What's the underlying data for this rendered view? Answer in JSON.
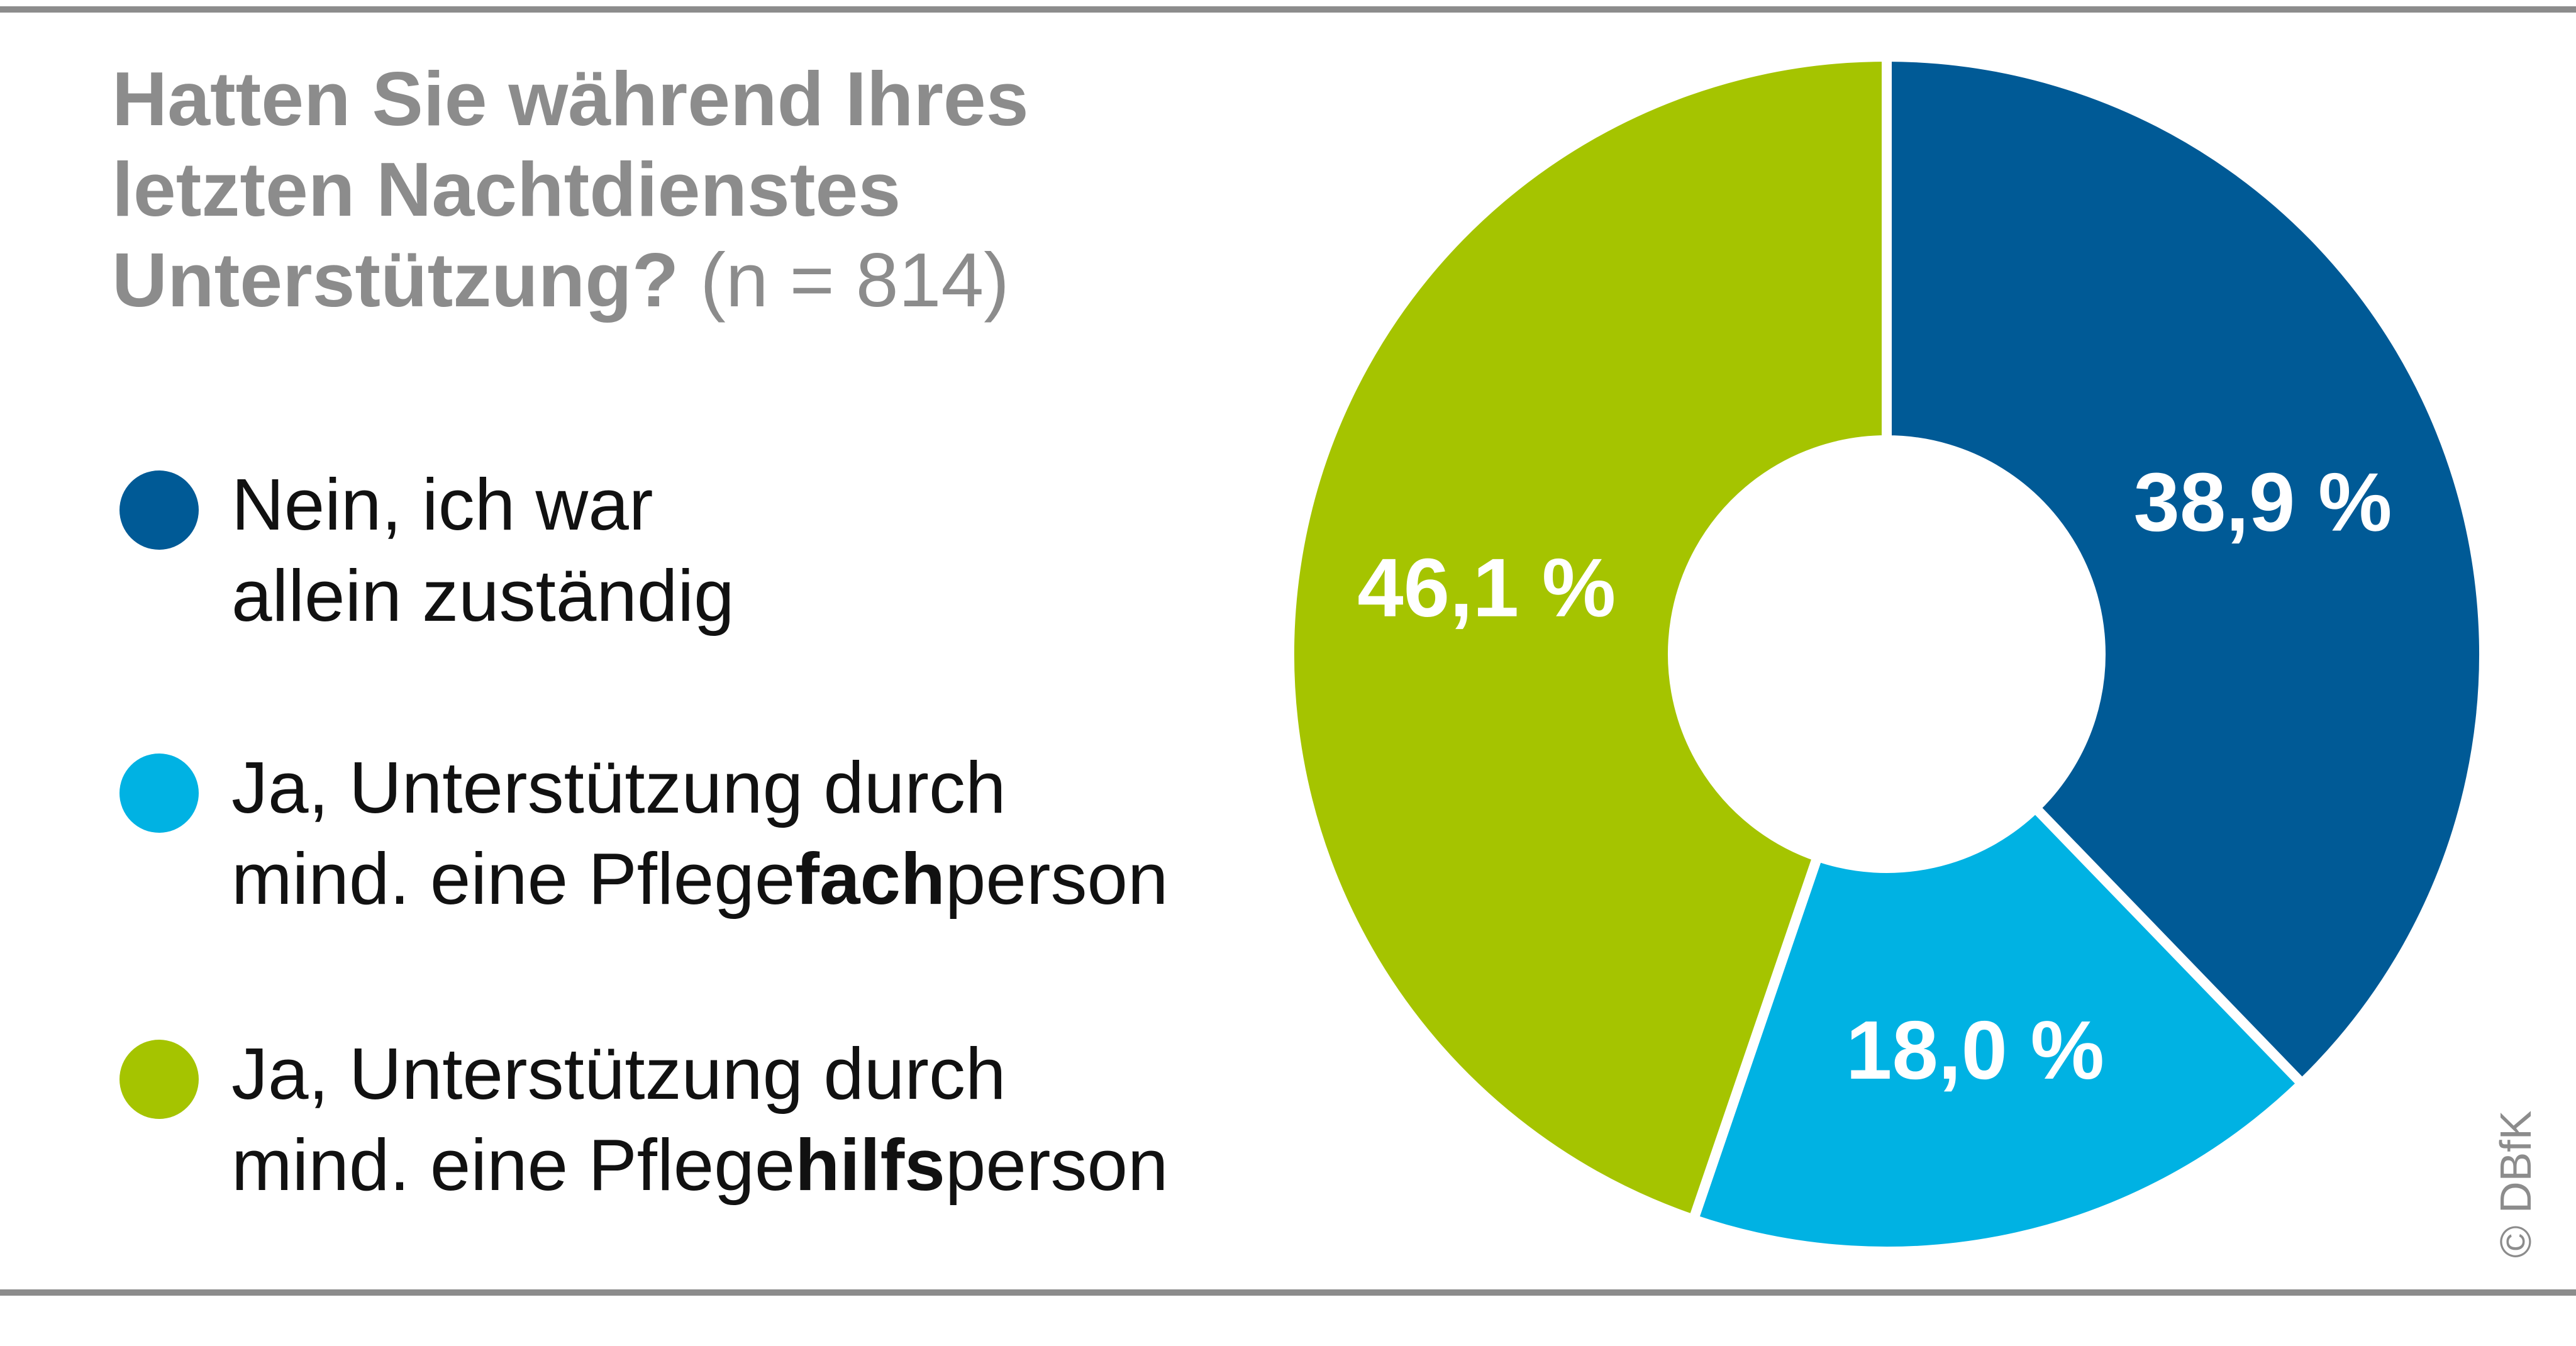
{
  "title": {
    "lines": [
      "Hatten Sie während Ihres",
      "letzten Nachtdienstes",
      "Unterstützung?"
    ],
    "sample": "(n = 814)"
  },
  "legend": [
    {
      "lines": [
        [
          "Nein, ich war",
          "",
          ""
        ],
        [
          "allein zuständig",
          "",
          ""
        ]
      ],
      "color": "#005a96"
    },
    {
      "lines": [
        [
          "Ja, Unterstützung durch",
          "",
          ""
        ],
        [
          "mind. eine Pflege",
          "fach",
          "person"
        ]
      ],
      "color": "#00b2e3"
    },
    {
      "lines": [
        [
          "Ja, Unterstützung durch",
          "",
          ""
        ],
        [
          "mind. eine Pflege",
          "hilfs",
          "person"
        ]
      ],
      "color": "#a5c400"
    }
  ],
  "chart_data": {
    "type": "pie",
    "style": "donut",
    "title": "Hatten Sie während Ihres letzten Nachtdienstes Unterstützung? (n = 814)",
    "slices": [
      {
        "label": "Nein, ich war allein zuständig",
        "value": 38.9,
        "value_label": "38,9 %",
        "color": "#005a96"
      },
      {
        "label": "Ja, Unterstützung durch mind. eine Pflegefachperson",
        "value": 18.0,
        "value_label": "18,0 %",
        "color": "#00b2e3"
      },
      {
        "label": "Ja, Unterstützung durch mind. eine Pflegehilfsperson",
        "value": 46.1,
        "value_label": "46,1 %",
        "color": "#a5c400"
      }
    ]
  },
  "credit": "© DBfK"
}
